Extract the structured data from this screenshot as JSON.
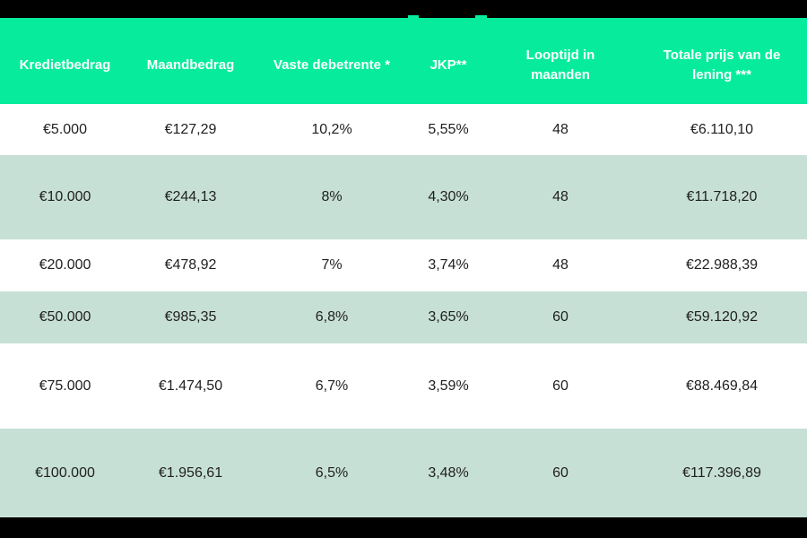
{
  "page": {
    "top_bar_color": "#000000",
    "bottom_bar_color": "#000000",
    "accent_green": "#06ec9c",
    "row_alt_color": "#c7e0d5",
    "header_text_color": "#ffffff",
    "body_text_color": "#1f1f1f"
  },
  "table": {
    "columns": [
      {
        "label": "Kredietbedrag"
      },
      {
        "label": "Maandbedrag"
      },
      {
        "label": "Vaste debetrente *"
      },
      {
        "label": "JKP**"
      },
      {
        "label": "Looptijd in maanden"
      },
      {
        "label": "Totale prijs van de lening ***"
      }
    ],
    "rows": [
      {
        "cells": [
          "€5.000",
          "€127,29",
          "10,2%",
          "5,55%",
          "48",
          "€6.110,10"
        ]
      },
      {
        "cells": [
          "€10.000",
          "€244,13",
          "8%",
          "4,30%",
          "48",
          "€11.718,20"
        ]
      },
      {
        "cells": [
          "€20.000",
          "€478,92",
          "7%",
          "3,74%",
          "48",
          "€22.988,39"
        ]
      },
      {
        "cells": [
          "€50.000",
          "€985,35",
          "6,8%",
          "3,65%",
          "60",
          "€59.120,92"
        ]
      },
      {
        "cells": [
          "€75.000",
          "€1.474,50",
          "6,7%",
          "3,59%",
          "60",
          "€88.469,84"
        ]
      },
      {
        "cells": [
          "€100.000",
          "€1.956,61",
          "6,5%",
          "3,48%",
          "60",
          "€117.396,89"
        ]
      }
    ]
  }
}
